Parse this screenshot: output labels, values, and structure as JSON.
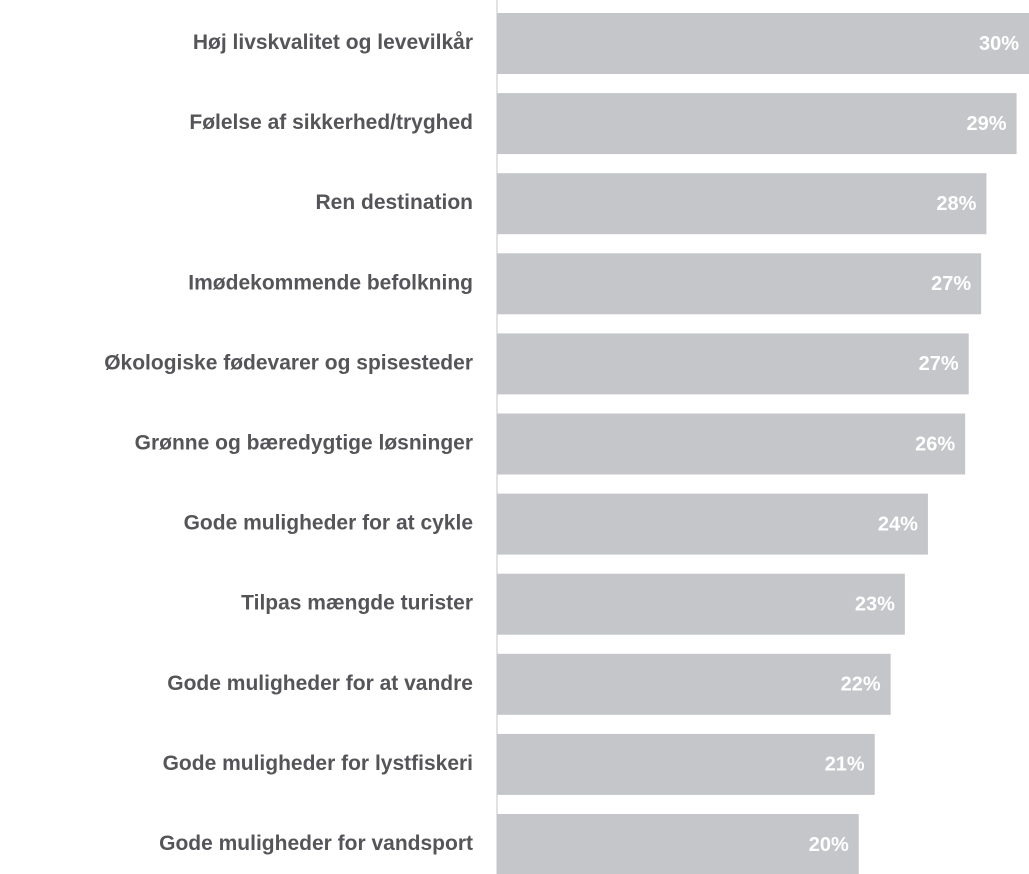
{
  "chart_data": {
    "type": "bar",
    "orientation": "horizontal",
    "categories": [
      "Høj livskvalitet og levevilkår",
      "Følelse af sikkerhed/tryghed",
      "Ren destination",
      "Imødekommende befolkning",
      "Økologiske fødevarer og spisesteder",
      "Grønne og bæredygtige løsninger",
      "Gode muligheder for at cykle",
      "Tilpas mængde turister",
      "Gode muligheder for at vandre",
      "Gode muligheder for lystfiskeri",
      "Gode muligheder for vandsport"
    ],
    "values": [
      30.0,
      29.3,
      27.6,
      27.3,
      26.6,
      26.4,
      24.3,
      23.0,
      22.2,
      21.3,
      20.4
    ],
    "value_labels": [
      "30%",
      "29%",
      "28%",
      "27%",
      "27%",
      "26%",
      "24%",
      "23%",
      "22%",
      "21%",
      "20%"
    ],
    "color": "#c5c6ca",
    "xlim": [
      0,
      30
    ]
  }
}
